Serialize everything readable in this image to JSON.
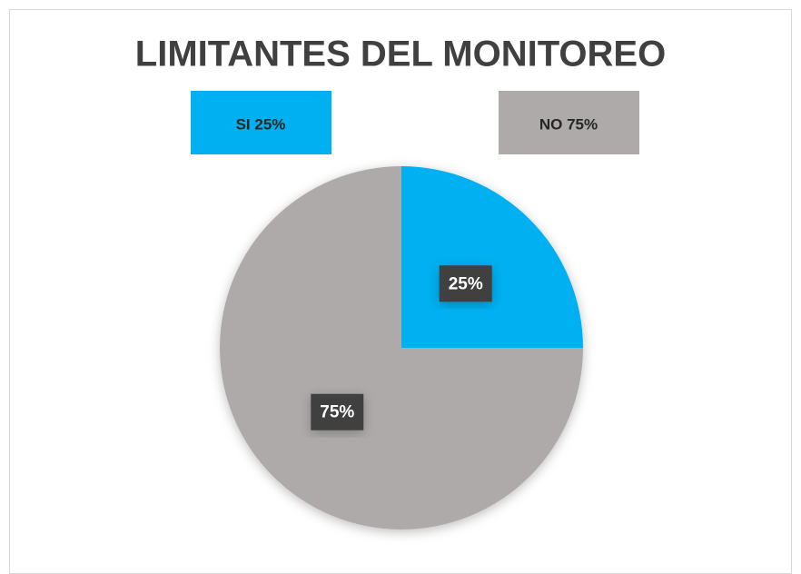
{
  "chart_data": {
    "type": "pie",
    "title": "LIMITANTES DEL MONITOREO",
    "categories": [
      "SI 25%",
      "NO 75%"
    ],
    "values": [
      25,
      75
    ],
    "value_labels": [
      "25%",
      "75%"
    ],
    "colors": [
      "#00b0f0",
      "#aeaaaa"
    ]
  }
}
